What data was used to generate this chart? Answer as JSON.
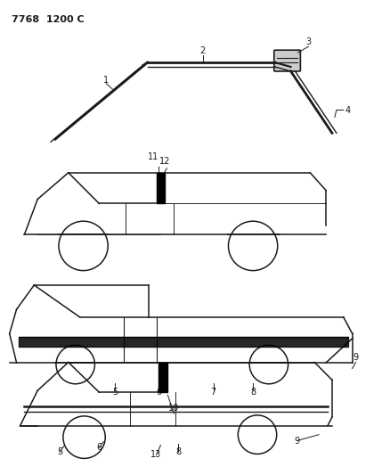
{
  "title": "7768  1200 C",
  "bg_color": "#ffffff",
  "line_color": "#1a1a1a",
  "fig_width": 4.29,
  "fig_height": 5.33,
  "dpi": 100
}
